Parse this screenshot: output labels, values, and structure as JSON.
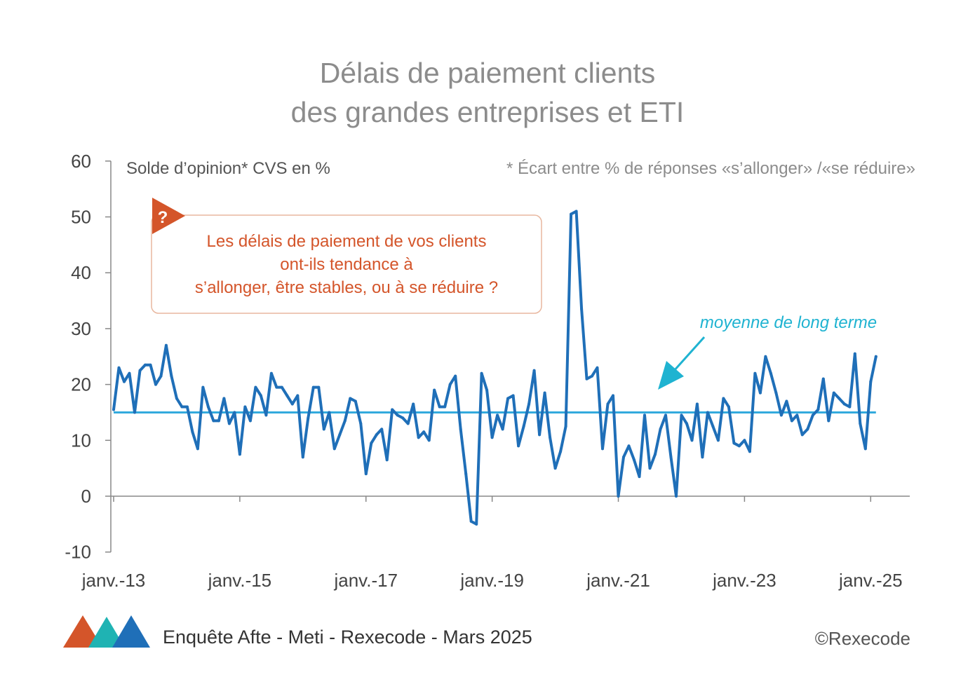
{
  "title": {
    "line1": "Délais de paiement clients",
    "line2": "des grandes entreprises et ETI"
  },
  "subtitle_left": "Solde d’opinion* CVS en %",
  "subtitle_right": "* Écart entre % de réponses «s’allonger» /«se réduire»",
  "question": {
    "mark": "?",
    "lines": [
      "Les délais de paiement de vos clients",
      "ont-ils tendance à",
      "s’allonger, être stables, ou à se réduire ?"
    ]
  },
  "annotation": "moyenne de long terme",
  "footer": {
    "source": "Enquête Afte - Meti - Rexecode  - Mars 2025",
    "copyright": "©Rexecode"
  },
  "colors": {
    "series": "#1f6fb8",
    "average": "#33aadd",
    "annotation": "#1fb3d1",
    "question_accent": "#d4552a",
    "title": "#8c8c8c",
    "logo": [
      "#d4552a",
      "#1fb3b3",
      "#1f6fb8"
    ]
  },
  "chart_data": {
    "type": "line",
    "title": "Délais de paiement clients des grandes entreprises et ETI",
    "ylabel": "Solde d’opinion* CVS en %",
    "ylim": [
      -10,
      60
    ],
    "yticks": [
      "-10",
      "0",
      "10",
      "20",
      "30",
      "40",
      "50",
      "60"
    ],
    "xticks": [
      "janv.-13",
      "janv.-15",
      "janv.-17",
      "janv.-19",
      "janv.-21",
      "janv.-23",
      "janv.-25"
    ],
    "x_start": "2013-01",
    "frequency": "monthly",
    "grid": false,
    "average": 15,
    "series": [
      {
        "name": "",
        "values": [
          15.5,
          23,
          20.5,
          22,
          15,
          22.5,
          23.5,
          23.5,
          20,
          21.5,
          27,
          21.5,
          17.5,
          16,
          16,
          11.5,
          8.5,
          19.5,
          16,
          13.5,
          13.5,
          17.5,
          13,
          15,
          7.5,
          16,
          13.5,
          19.5,
          18,
          14.5,
          22,
          19.5,
          19.5,
          18,
          16.5,
          18,
          7,
          14,
          19.5,
          19.5,
          12,
          15,
          8.5,
          11,
          13.5,
          17.5,
          17,
          13,
          4,
          9.5,
          11,
          12,
          6.5,
          15.5,
          14.5,
          14,
          13,
          16.5,
          10.5,
          11.5,
          10,
          19,
          16,
          16,
          20,
          21.5,
          12,
          4,
          -4.5,
          -5,
          22,
          19,
          10.5,
          14.5,
          12,
          17.5,
          18,
          9,
          12.5,
          16.5,
          22.5,
          11,
          18.5,
          10.5,
          5,
          8,
          12.5,
          50.5,
          51,
          33.5,
          21,
          21.5,
          23,
          8.5,
          16.5,
          18,
          0,
          7,
          9,
          6.5,
          3.5,
          14.5,
          5,
          7.5,
          12,
          14.5,
          7,
          0,
          14.5,
          13,
          10,
          16.5,
          7,
          15,
          12.5,
          10,
          17.5,
          16,
          9.5,
          9,
          10,
          8,
          22,
          18.5,
          25,
          22,
          18.5,
          14.5,
          17,
          13.5,
          14.5,
          11,
          12,
          14.5,
          15.5,
          21,
          13.5,
          18.5,
          17.5,
          16.5,
          16,
          25.5,
          13,
          8.5,
          20.5,
          25
        ]
      }
    ]
  }
}
